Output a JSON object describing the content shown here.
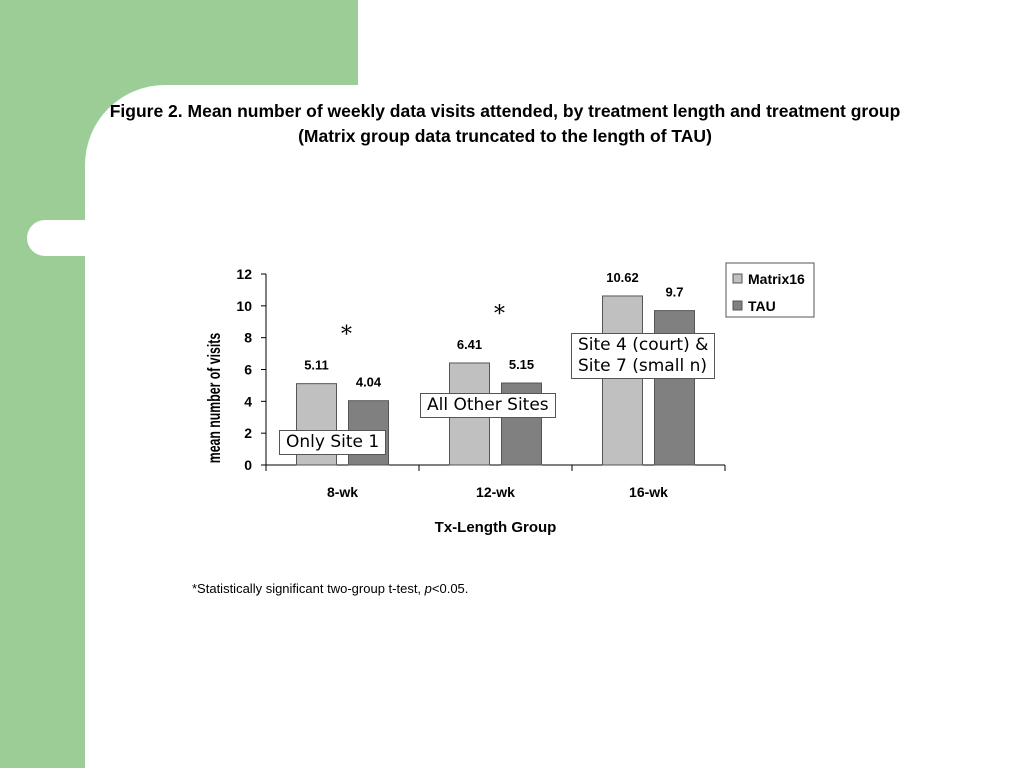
{
  "slide": {
    "colors": {
      "green_band": "#9ccd97",
      "background": "#ffffff"
    }
  },
  "figure": {
    "title_line1": "Figure 2. Mean number of weekly data visits attended, by treatment length and treatment group",
    "title_line2": "(Matrix group data truncated to the length of TAU)",
    "footnote_prefix": "*Statistically significant two-group t-test, ",
    "footnote_p": "p",
    "footnote_suffix": "<0.05."
  },
  "annotations": {
    "only_site1": "Only Site 1",
    "all_other_sites": "All Other Sites",
    "site4_line1": "Site 4 (court) &",
    "site4_line2": "Site 7 (small n)"
  },
  "chart_data": {
    "type": "bar",
    "categories": [
      "8-wk",
      "12-wk",
      "16-wk"
    ],
    "series": [
      {
        "name": "Matrix16",
        "values": [
          5.11,
          6.41,
          10.62
        ],
        "labels": [
          "5.11",
          "6.41",
          "10.62"
        ],
        "color": "#c0c0c0"
      },
      {
        "name": "TAU",
        "values": [
          4.04,
          5.15,
          9.7
        ],
        "labels": [
          "4.04",
          "5.15",
          "9.7"
        ],
        "color": "#808080"
      }
    ],
    "significance_marker": "*",
    "significant_categories": [
      "8-wk",
      "12-wk"
    ],
    "xlabel": "Tx-Length Group",
    "ylabel": "mean number of visits",
    "ylim": [
      0,
      12
    ],
    "yticks": [
      "0",
      "2",
      "4",
      "6",
      "8",
      "10",
      "12"
    ],
    "grid": false,
    "legend": "right"
  }
}
